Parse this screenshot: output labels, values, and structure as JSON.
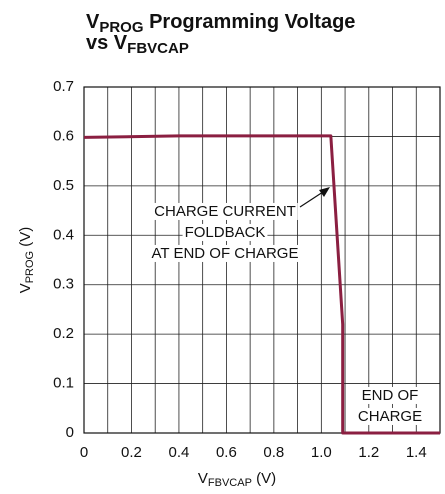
{
  "chart_data": {
    "type": "line",
    "title": [
      [
        "V",
        "PROG",
        " Programming Voltage"
      ],
      [
        "vs V",
        "FBVCAP"
      ]
    ],
    "x_label": [
      "V",
      "FBVCAP",
      " (V)"
    ],
    "y_label": [
      "V",
      "PROG",
      " (V)"
    ],
    "x": [
      0,
      0.4,
      1.04,
      1.09,
      1.09,
      1.5
    ],
    "series": [
      {
        "color": "#8b1f41",
        "values": [
          0.598,
          0.601,
          0.601,
          0.22,
          0,
          0
        ]
      }
    ],
    "xlim": [
      0,
      1.5
    ],
    "xticks": [
      0,
      {
        "value": 0.2,
        "label": "0.2"
      },
      {
        "value": 0.4,
        "label": "0.4"
      },
      {
        "value": 0.6,
        "label": "0.6"
      },
      {
        "value": 0.8,
        "label": "0.8"
      },
      {
        "value": 1.0,
        "label": "1.0"
      },
      {
        "value": 1.2,
        "label": "1.2"
      },
      {
        "value": 1.4,
        "label": "1.4"
      }
    ],
    "xminor": [
      0.1,
      0.3,
      0.5,
      0.7,
      0.9,
      1.1,
      1.3
    ],
    "ylim": [
      0,
      0.7
    ],
    "yticks": [
      0,
      0.1,
      0.2,
      0.3,
      0.4,
      0.5,
      0.6,
      0.7
    ],
    "grid": true,
    "annotations": [
      [
        "CHARGE CURRENT",
        "FOLDBACK",
        "AT END OF CHARGE"
      ],
      [
        "END OF",
        "CHARGE"
      ]
    ]
  }
}
